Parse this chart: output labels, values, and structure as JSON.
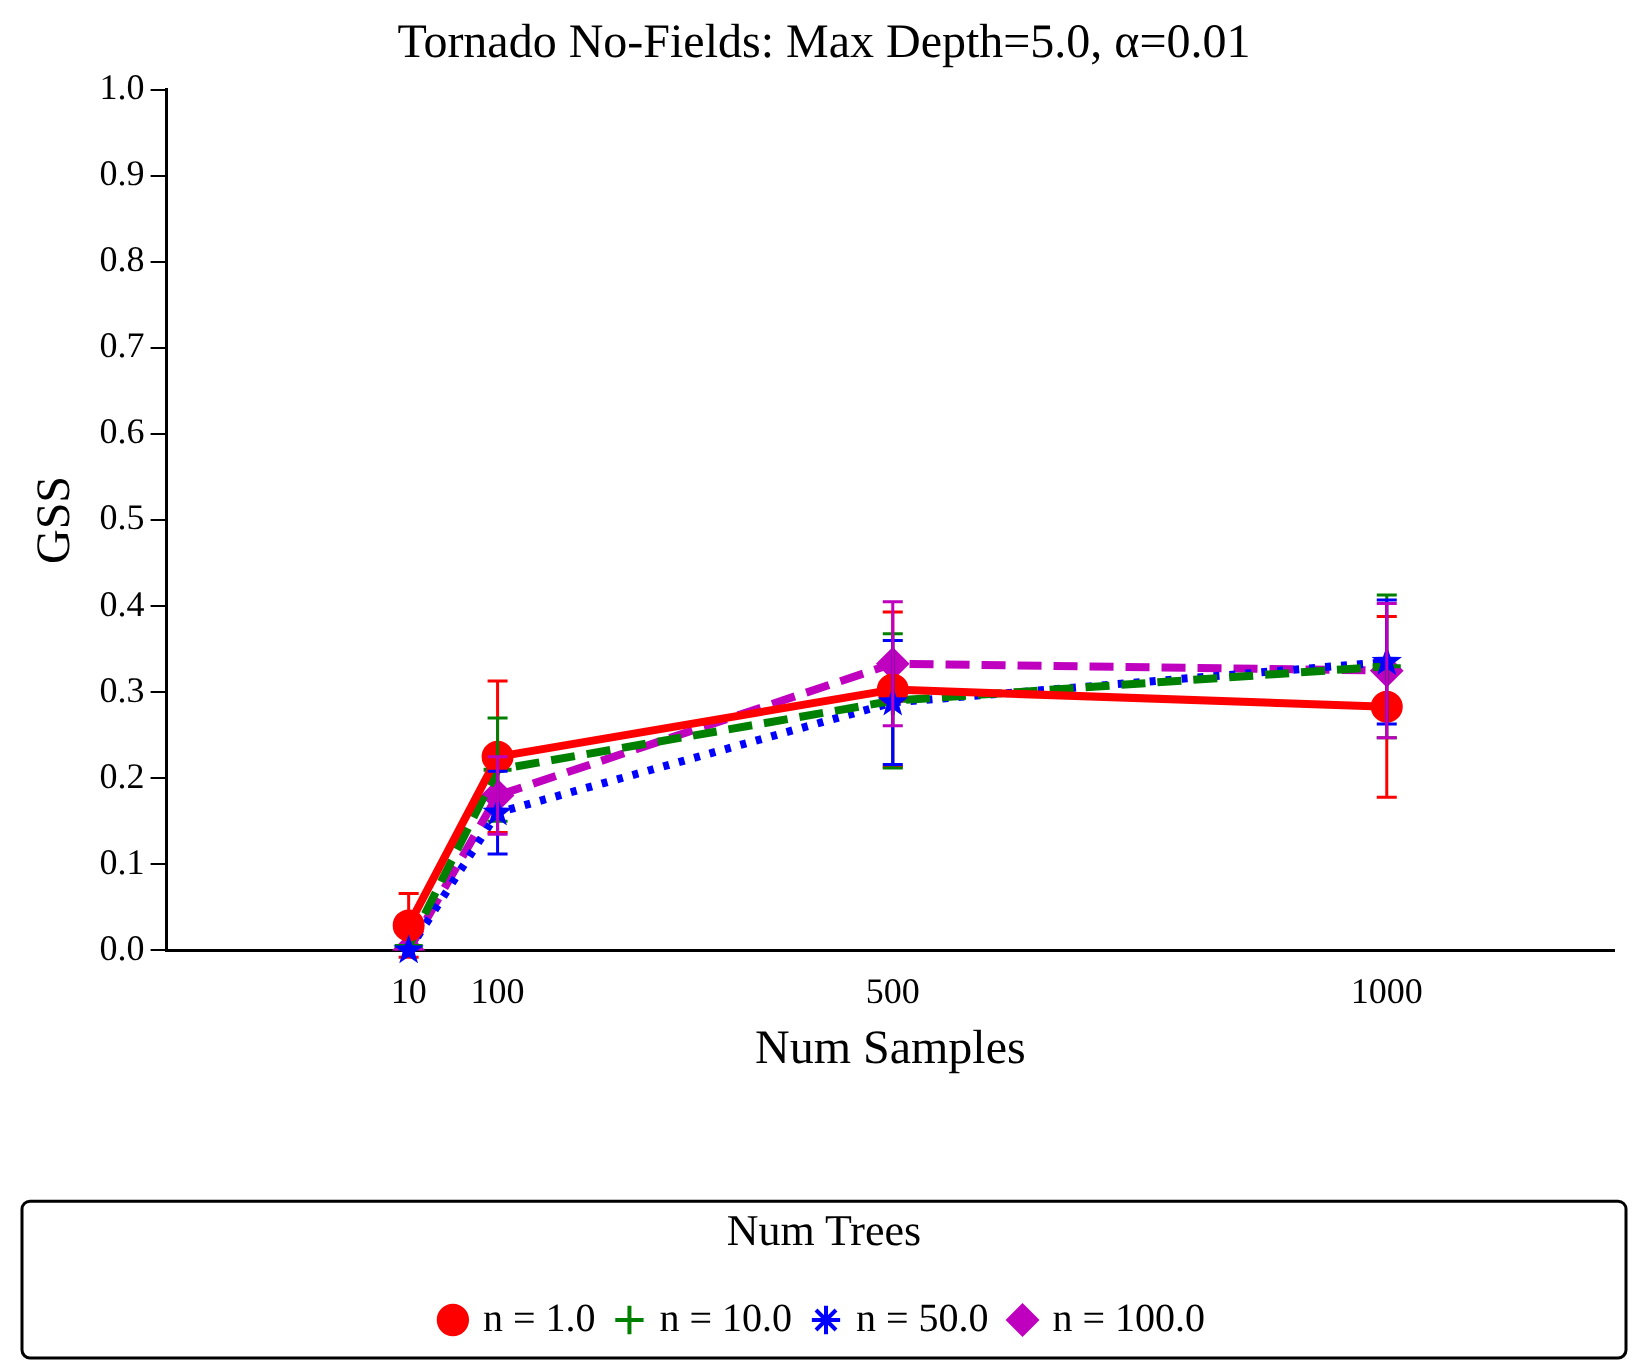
{
  "chart_data": {
    "type": "line",
    "title": "Tornado No-Fields: Max Depth=5.0, α=0.01",
    "xlabel": "Num Samples",
    "ylabel": "GSS",
    "legend_title": "Num Trees",
    "x": [
      10,
      100,
      500,
      1000
    ],
    "xlim": [
      -235,
      1230
    ],
    "xticks": [
      10,
      100,
      500,
      1000
    ],
    "ylim": [
      0,
      1
    ],
    "yticks": [
      {
        "value": 0,
        "label": "0.0"
      },
      0.1,
      0.2,
      0.3,
      0.4,
      0.5,
      0.6,
      0.7,
      0.8,
      0.9,
      {
        "value": 1,
        "label": "1.0"
      }
    ],
    "grid": false,
    "legend": "bottom",
    "series": [
      {
        "name": "n = 1.0",
        "color": "#ff0000",
        "marker": "circle",
        "line_style": "solid",
        "values": [
          0.029,
          0.225,
          0.303,
          0.283
        ],
        "errors": [
          0.037,
          0.088,
          0.09,
          0.105
        ]
      },
      {
        "name": "n = 10.0",
        "color": "#008000",
        "marker": "cross",
        "line_style": "dashed",
        "values": [
          0.005,
          0.21,
          0.29,
          0.33
        ],
        "errors": [
          null,
          0.06,
          0.078,
          0.083
        ]
      },
      {
        "name": "n = 50.0",
        "color": "#0000ff",
        "marker": "star",
        "line_style": "dotted",
        "values": [
          0.0,
          0.16,
          0.288,
          0.335
        ],
        "errors": [
          null,
          0.048,
          0.072,
          0.072
        ]
      },
      {
        "name": "n = 100.0",
        "color": "#bf00bf",
        "marker": "diamond",
        "line_style": "dashed",
        "values": [
          0.0,
          0.18,
          0.333,
          0.325
        ],
        "errors": [
          null,
          0.045,
          0.072,
          0.078
        ]
      }
    ]
  }
}
